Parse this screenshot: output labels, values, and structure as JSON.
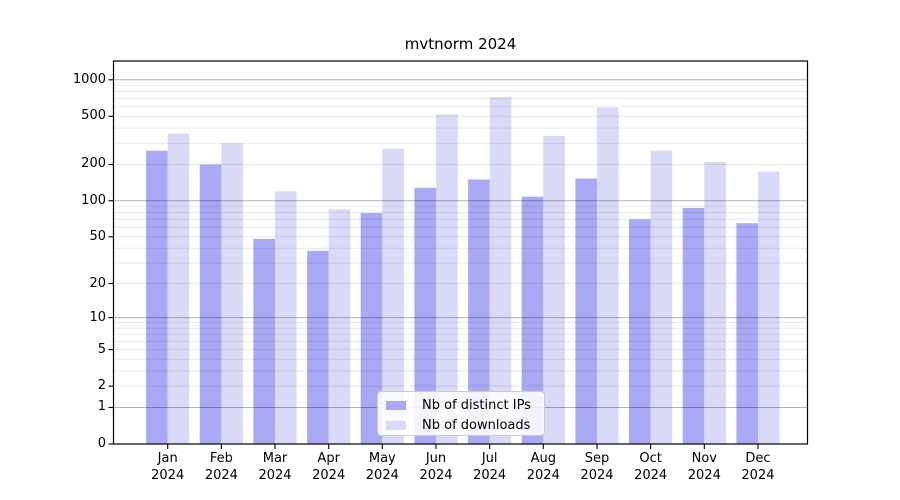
{
  "figure": {
    "title": "mvtnorm 2024"
  },
  "legend": {
    "items": [
      {
        "label": "Nb of distinct IPs"
      },
      {
        "label": "Nb of downloads"
      }
    ]
  },
  "chart_data": {
    "type": "bar",
    "title": "mvtnorm 2024",
    "xlabel": "",
    "ylabel": "",
    "categories": [
      "Jan",
      "Feb",
      "Mar",
      "Apr",
      "May",
      "Jun",
      "Jul",
      "Aug",
      "Sep",
      "Oct",
      "Nov",
      "Dec"
    ],
    "x_tick_second_line": "2024",
    "series": [
      {
        "name": "Nb of distinct IPs",
        "color": "#a8a8f5",
        "values": [
          260,
          200,
          48,
          38,
          79,
          128,
          150,
          108,
          153,
          70,
          87,
          65
        ]
      },
      {
        "name": "Nb of downloads",
        "color": "#d9d9f8",
        "values": [
          360,
          300,
          120,
          85,
          270,
          520,
          720,
          345,
          590,
          260,
          210,
          175
        ]
      }
    ],
    "yscale": "log1p",
    "ylim": [
      0,
      1430
    ],
    "yticks": [
      0,
      1,
      2,
      5,
      10,
      20,
      50,
      100,
      200,
      500,
      1000
    ],
    "grid": {
      "major": [
        1,
        10,
        100,
        1000
      ],
      "minor": [
        2,
        3,
        4,
        5,
        6,
        7,
        8,
        9,
        20,
        30,
        40,
        50,
        60,
        70,
        80,
        90,
        200,
        300,
        400,
        500,
        600,
        700,
        800,
        900
      ],
      "major_opacity": 0.3,
      "minor_opacity": 0.09
    },
    "legend_position": "lower center",
    "bar_colors": {
      "distinct_ips": "#a8a8f5",
      "downloads": "#d9d9f8"
    }
  }
}
